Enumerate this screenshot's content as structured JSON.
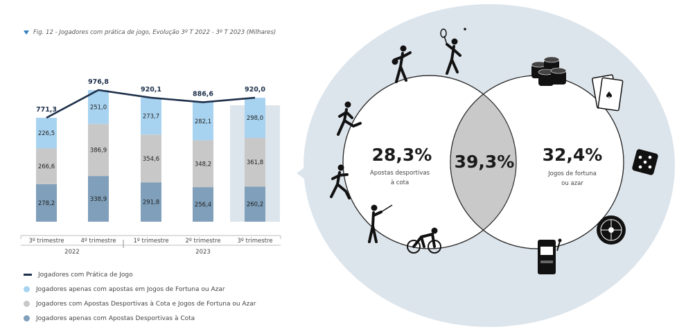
{
  "figure": {
    "title": "Fig. 12 - Jogadores com prática de jogo, Evolução 3º T 2022 - 3º T 2023 (Milhares)"
  },
  "chart_data": {
    "type": "bar",
    "stacked": true,
    "categories": [
      "3º trimestre",
      "4º trimestre",
      "1º trimestre",
      "2º trimestre",
      "3º trimestre"
    ],
    "groups": [
      {
        "label": "2022"
      },
      {
        "label": "2023"
      }
    ],
    "series": [
      {
        "name": "Jogadores apenas com Apostas Desportivas à Cota",
        "color": "#7f9fba",
        "values": [
          278.2,
          338.9,
          291.8,
          256.4,
          260.2
        ]
      },
      {
        "name": "Jogadores com Apostas Desportivas à Cota e Jogos de Fortuna ou Azar",
        "color": "#c8c8c8",
        "values": [
          266.6,
          386.9,
          354.6,
          348.2,
          361.8
        ]
      },
      {
        "name": "Jogadores apenas com apostas em Jogos de Fortuna ou Azar",
        "color": "#a8d3f0",
        "values": [
          226.5,
          251.0,
          273.7,
          282.1,
          298.0
        ]
      }
    ],
    "line": {
      "name": "Jogadores com Prática de Jogo",
      "color": "#1d2f4a",
      "values": [
        771.3,
        976.8,
        920.1,
        886.6,
        920.0
      ]
    },
    "totals_labels": [
      "771,3",
      "976,8",
      "920,1",
      "886,6",
      "920,0"
    ],
    "value_labels": [
      [
        "278,2",
        "338,9",
        "291,8",
        "256,4",
        "260,2"
      ],
      [
        "266,6",
        "386,9",
        "354,6",
        "348,2",
        "361,8"
      ],
      [
        "226,5",
        "251,0",
        "273,7",
        "282,1",
        "298,0"
      ]
    ],
    "highlight_index": 4,
    "ylim": [
      0,
      1000
    ]
  },
  "legend": [
    {
      "label": "Jogadores com Prática de Jogo",
      "color": "#1d2f4a",
      "shape": "line"
    },
    {
      "label": "Jogadores apenas com apostas em Jogos de Fortuna ou Azar",
      "color": "#a8d3f0",
      "shape": "dot"
    },
    {
      "label": "Jogadores com Apostas Desportivas à Cota e Jogos de Fortuna ou Azar",
      "color": "#c8c8c8",
      "shape": "dot"
    },
    {
      "label": "Jogadores apenas com Apostas Desportivas à Cota",
      "color": "#7f9fba",
      "shape": "dot"
    }
  ],
  "venn": {
    "left": {
      "value": "28,3%",
      "label_line1": "Apostas desportivas",
      "label_line2": "à cota"
    },
    "center": {
      "value": "39,3%"
    },
    "right": {
      "value": "32,4%",
      "label_line1": "Jogos de fortuna",
      "label_line2": "ou azar"
    },
    "colors": {
      "bubble": "#dde5ec",
      "intersection": "#c9c9c9",
      "outline": "#2a2a2a"
    },
    "icons_left": [
      "basketball-player-icon",
      "tennis-player-icon",
      "runner-icon",
      "soccer-player-icon",
      "golfer-icon",
      "cyclist-icon"
    ],
    "icons_right": [
      "casino-chips-icon",
      "playing-cards-icon",
      "dice-icon",
      "roulette-icon",
      "slot-machine-icon"
    ]
  }
}
